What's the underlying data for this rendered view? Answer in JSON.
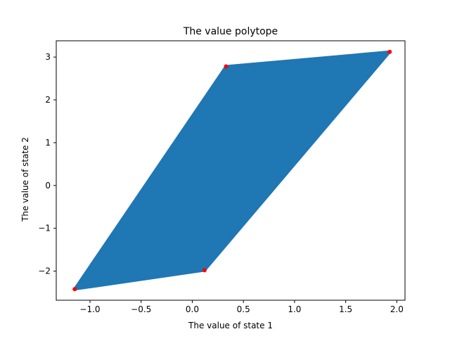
{
  "chart_data": {
    "type": "scatter",
    "title": "The value polytope",
    "xlabel": "The value of state 1",
    "ylabel": "The value of state 2",
    "xlim": [
      -1.33,
      2.08
    ],
    "ylim": [
      -2.68,
      3.38
    ],
    "xticks": [
      -1.0,
      -0.5,
      0.0,
      0.5,
      1.0,
      1.5,
      2.0
    ],
    "xtick_labels": [
      "−1.0",
      "−0.5",
      "0.0",
      "0.5",
      "1.0",
      "1.5",
      "2.0"
    ],
    "yticks": [
      -2,
      -1,
      0,
      1,
      2,
      3
    ],
    "ytick_labels": [
      "−2",
      "−1",
      "0",
      "1",
      "2",
      "3"
    ],
    "grid": false,
    "series": [
      {
        "kind": "filled-region",
        "color": "#1f77b4",
        "vertices": [
          [
            -1.15,
            -2.42
          ],
          [
            0.12,
            -1.98
          ],
          [
            1.93,
            3.12
          ],
          [
            0.33,
            2.78
          ]
        ]
      },
      {
        "kind": "points",
        "color": "#ff0000",
        "points": [
          [
            -1.15,
            -2.42
          ],
          [
            0.12,
            -1.98
          ],
          [
            0.33,
            2.78
          ],
          [
            1.93,
            3.12
          ]
        ]
      }
    ]
  }
}
